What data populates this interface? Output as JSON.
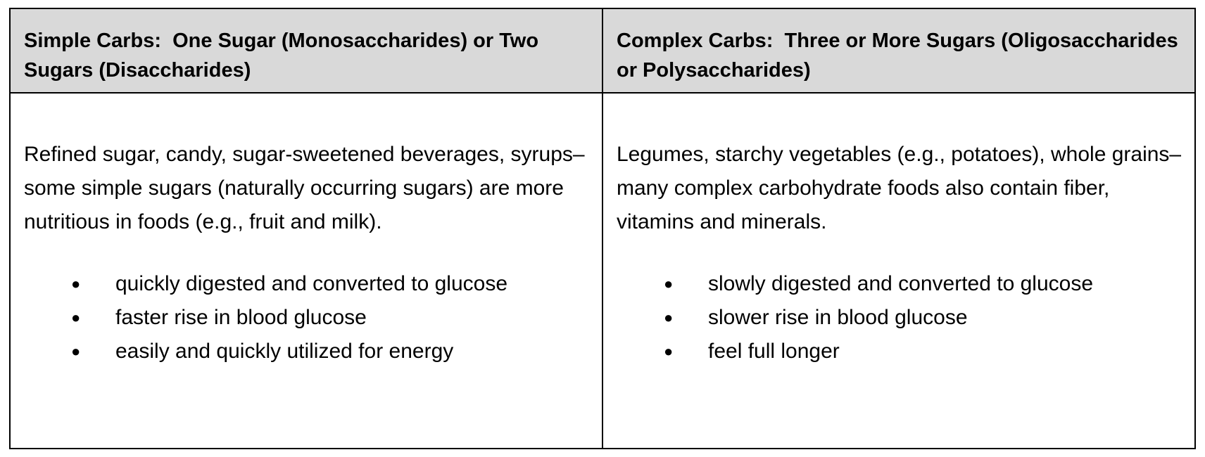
{
  "table": {
    "headers": [
      "Simple Carbs:  One Sugar (Monosaccharides) or Two Sugars (Disaccharides)",
      "Complex Carbs:  Three or More Sugars (Oligosaccharides or Polysaccharides)"
    ],
    "cells": [
      {
        "paragraph": "Refined sugar, candy, sugar-sweetened beverages, syrups–some simple sugars (naturally occurring sugars) are more nutritious in foods (e.g., fruit and milk).",
        "bullets": [
          "quickly digested and converted to glucose",
          "faster rise in blood glucose",
          "easily and quickly utilized for energy"
        ]
      },
      {
        "paragraph": "Legumes, starchy vegetables (e.g., potatoes), whole grains–many complex carbohydrate foods also contain fiber, vitamins and minerals.",
        "bullets": [
          "slowly digested and converted to glucose",
          "slower rise in blood glucose",
          "feel full longer"
        ]
      }
    ]
  }
}
